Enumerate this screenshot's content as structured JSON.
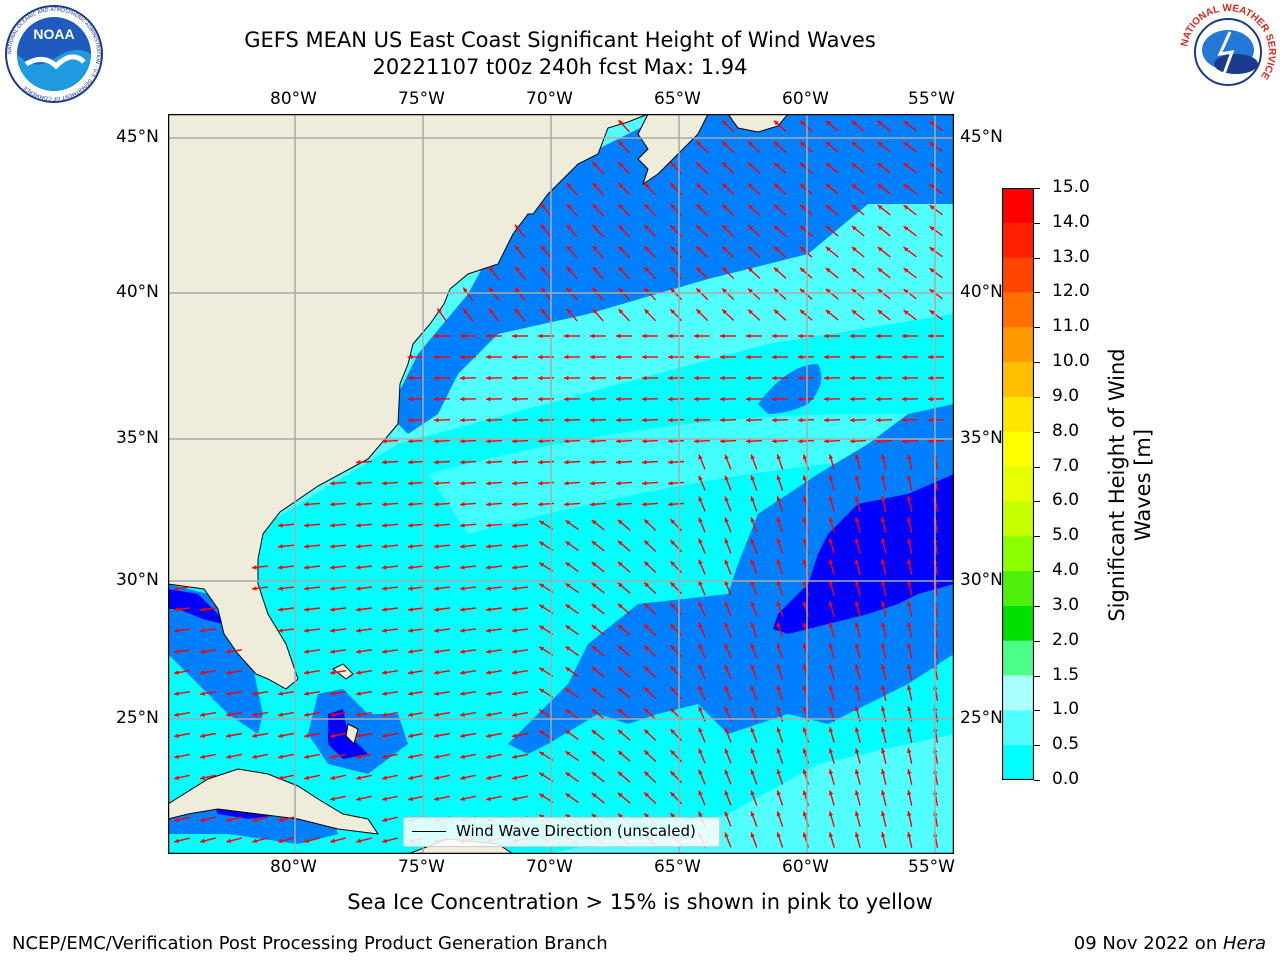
{
  "header": {
    "title_line1": "GEFS MEAN US East Coast Significant Height of Wind Waves",
    "title_line2": "20221107 t00z 240h fcst   Max: 1.94"
  },
  "logos": {
    "left": "NOAA",
    "left_ring": "NATIONAL OCEANIC AND ATMOSPHERIC ADMINISTRATION · U.S. DEPARTMENT OF COMMERCE",
    "right_ring": "NATIONAL WEATHER SERVICE"
  },
  "map": {
    "lon_labels": [
      "80°W",
      "75°W",
      "70°W",
      "65°W",
      "60°W",
      "55°W"
    ],
    "lat_labels": [
      "45°N",
      "40°N",
      "35°N",
      "30°N",
      "25°N"
    ],
    "legend_label": "Wind Wave Direction (unscaled)",
    "colors": {
      "land": "#efecdc",
      "ocean_blue": "#0080ff",
      "ocean_cyan": "#00ffff",
      "ocean_lightcyan": "#52ffff",
      "ocean_darkblue": "#0000ff",
      "arrow": "#ff0000",
      "grid": "#aaaaaa"
    }
  },
  "colorbar": {
    "title": "Significant Height of Wind Waves [m]",
    "labels": [
      "15.0",
      "14.0",
      "13.0",
      "12.0",
      "11.0",
      "10.0",
      "9.0",
      "8.0",
      "7.0",
      "6.0",
      "5.0",
      "4.0",
      "3.0",
      "2.0",
      "1.5",
      "1.0",
      "0.5",
      "0.0"
    ],
    "colors": [
      "#ff0000",
      "#ff2000",
      "#ff4500",
      "#ff7000",
      "#ff9a00",
      "#ffbf00",
      "#ffe600",
      "#ffff00",
      "#e8ff00",
      "#c6ff00",
      "#8cff00",
      "#4ff00a",
      "#00e000",
      "#4cff8a",
      "#aaffff",
      "#52ffff",
      "#00ffff",
      "#0080ff",
      "#0000ff"
    ]
  },
  "caption": "Sea Ice Concentration > 15% is shown in pink to yellow",
  "footer": {
    "left": "NCEP/EMC/Verification Post Processing Product Generation Branch",
    "right_date": "09 Nov 2022 on ",
    "right_host": "Hera"
  }
}
